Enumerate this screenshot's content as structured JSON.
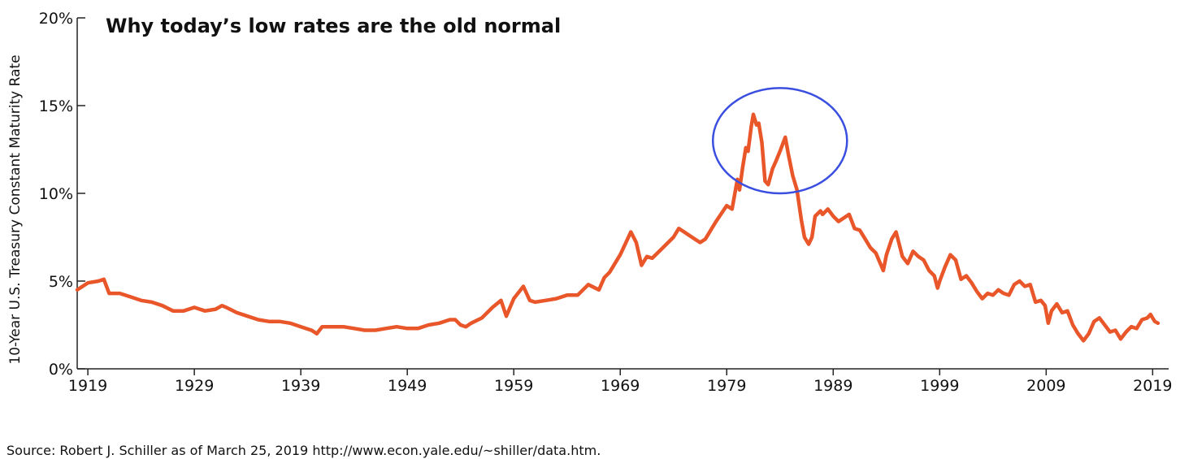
{
  "chart_data": {
    "type": "line",
    "title": "Why today’s low rates are the old normal",
    "ylabel": "10-Year U.S. Treasury Constant Maturity Rate",
    "xlabel": "",
    "xlim": [
      1918,
      2020.5
    ],
    "ylim": [
      0,
      20
    ],
    "xticks": [
      1919,
      1929,
      1939,
      1949,
      1959,
      1969,
      1979,
      1989,
      1999,
      2009,
      2019
    ],
    "xtick_labels": [
      "1919",
      "1929",
      "1939",
      "1949",
      "1959",
      "1969",
      "1979",
      "1989",
      "1999",
      "2009",
      "2019"
    ],
    "yticks": [
      0,
      5,
      10,
      15,
      20
    ],
    "ytick_labels": [
      "0%",
      "5%",
      "10%",
      "15%",
      "20%"
    ],
    "line_color": "#e8562a",
    "highlight_color": "#3a4fe0",
    "annotation": {
      "type": "ellipse",
      "note": "circled peak",
      "x_range": [
        1977.7,
        1990.3
      ],
      "y_range": [
        10.0,
        16.0
      ]
    },
    "series": [
      {
        "name": "10-Year U.S. Treasury Constant Maturity Rate",
        "x": [
          1918.0,
          1919.0,
          1920.0,
          1920.5,
          1921.0,
          1921.6,
          1922.0,
          1923.0,
          1924.0,
          1925.0,
          1926.0,
          1927.0,
          1928.0,
          1929.0,
          1930.0,
          1931.0,
          1931.6,
          1932.0,
          1933.0,
          1934.0,
          1935.0,
          1936.0,
          1937.0,
          1938.0,
          1939.0,
          1940.0,
          1940.5,
          1941.0,
          1942.0,
          1943.0,
          1944.0,
          1945.0,
          1946.0,
          1947.0,
          1948.0,
          1949.0,
          1950.0,
          1951.0,
          1952.0,
          1953.0,
          1953.5,
          1954.0,
          1954.5,
          1955.0,
          1956.0,
          1957.0,
          1957.8,
          1958.3,
          1959.0,
          1959.9,
          1960.5,
          1961.0,
          1962.0,
          1963.0,
          1964.0,
          1965.0,
          1966.0,
          1967.0,
          1967.5,
          1968.0,
          1969.0,
          1970.0,
          1970.5,
          1971.0,
          1971.5,
          1972.0,
          1973.0,
          1974.0,
          1974.5,
          1975.0,
          1976.0,
          1976.5,
          1977.0,
          1978.0,
          1979.0,
          1979.5,
          1980.0,
          1980.2,
          1980.5,
          1980.8,
          1981.0,
          1981.3,
          1981.5,
          1981.8,
          1982.0,
          1982.3,
          1982.6,
          1982.9,
          1983.3,
          1983.6,
          1984.0,
          1984.5,
          1984.8,
          1985.2,
          1985.6,
          1986.0,
          1986.3,
          1986.7,
          1987.0,
          1987.3,
          1987.8,
          1988.0,
          1988.5,
          1989.0,
          1989.5,
          1990.0,
          1990.5,
          1991.0,
          1991.5,
          1992.0,
          1992.5,
          1993.0,
          1993.7,
          1994.0,
          1994.5,
          1994.9,
          1995.5,
          1996.0,
          1996.5,
          1997.0,
          1997.5,
          1998.0,
          1998.5,
          1998.8,
          1999.0,
          1999.5,
          2000.0,
          2000.5,
          2001.0,
          2001.5,
          2002.0,
          2002.5,
          2003.0,
          2003.5,
          2004.0,
          2004.5,
          2005.0,
          2005.5,
          2006.0,
          2006.5,
          2007.0,
          2007.5,
          2008.0,
          2008.5,
          2008.9,
          2009.2,
          2009.5,
          2010.0,
          2010.5,
          2011.0,
          2011.5,
          2012.0,
          2012.5,
          2013.0,
          2013.5,
          2014.0,
          2014.5,
          2015.0,
          2015.5,
          2016.0,
          2016.5,
          2017.0,
          2017.5,
          2018.0,
          2018.5,
          2018.8,
          2019.0,
          2019.2,
          2019.5
        ],
        "y": [
          4.5,
          4.9,
          5.0,
          5.1,
          4.3,
          4.3,
          4.3,
          4.1,
          3.9,
          3.8,
          3.6,
          3.3,
          3.3,
          3.5,
          3.3,
          3.4,
          3.6,
          3.5,
          3.2,
          3.0,
          2.8,
          2.7,
          2.7,
          2.6,
          2.4,
          2.2,
          2.0,
          2.4,
          2.4,
          2.4,
          2.3,
          2.2,
          2.2,
          2.3,
          2.4,
          2.3,
          2.3,
          2.5,
          2.6,
          2.8,
          2.8,
          2.5,
          2.4,
          2.6,
          2.9,
          3.5,
          3.9,
          3.0,
          4.0,
          4.7,
          3.9,
          3.8,
          3.9,
          4.0,
          4.2,
          4.2,
          4.8,
          4.5,
          5.2,
          5.5,
          6.5,
          7.8,
          7.2,
          5.9,
          6.4,
          6.3,
          6.9,
          7.5,
          8.0,
          7.8,
          7.4,
          7.2,
          7.4,
          8.4,
          9.3,
          9.1,
          10.8,
          10.2,
          11.5,
          12.6,
          12.4,
          13.8,
          14.5,
          13.9,
          14.0,
          12.9,
          10.7,
          10.5,
          11.4,
          11.8,
          12.4,
          13.2,
          12.2,
          11.0,
          10.2,
          8.5,
          7.5,
          7.1,
          7.5,
          8.7,
          9.0,
          8.8,
          9.1,
          8.7,
          8.4,
          8.6,
          8.8,
          8.0,
          7.9,
          7.4,
          6.9,
          6.6,
          5.6,
          6.5,
          7.4,
          7.8,
          6.4,
          6.0,
          6.7,
          6.4,
          6.2,
          5.6,
          5.3,
          4.6,
          5.0,
          5.8,
          6.5,
          6.2,
          5.1,
          5.3,
          4.9,
          4.4,
          4.0,
          4.3,
          4.2,
          4.5,
          4.3,
          4.2,
          4.8,
          5.0,
          4.7,
          4.8,
          3.8,
          3.9,
          3.6,
          2.6,
          3.3,
          3.7,
          3.2,
          3.3,
          2.5,
          2.0,
          1.6,
          2.0,
          2.7,
          2.9,
          2.5,
          2.1,
          2.2,
          1.7,
          2.1,
          2.4,
          2.3,
          2.8,
          2.9,
          3.1,
          2.9,
          2.7,
          2.6
        ]
      }
    ]
  },
  "source_text": "Source: Robert J. Schiller as of March 25, 2019 http://www.econ.yale.edu/~shiller/data.htm."
}
